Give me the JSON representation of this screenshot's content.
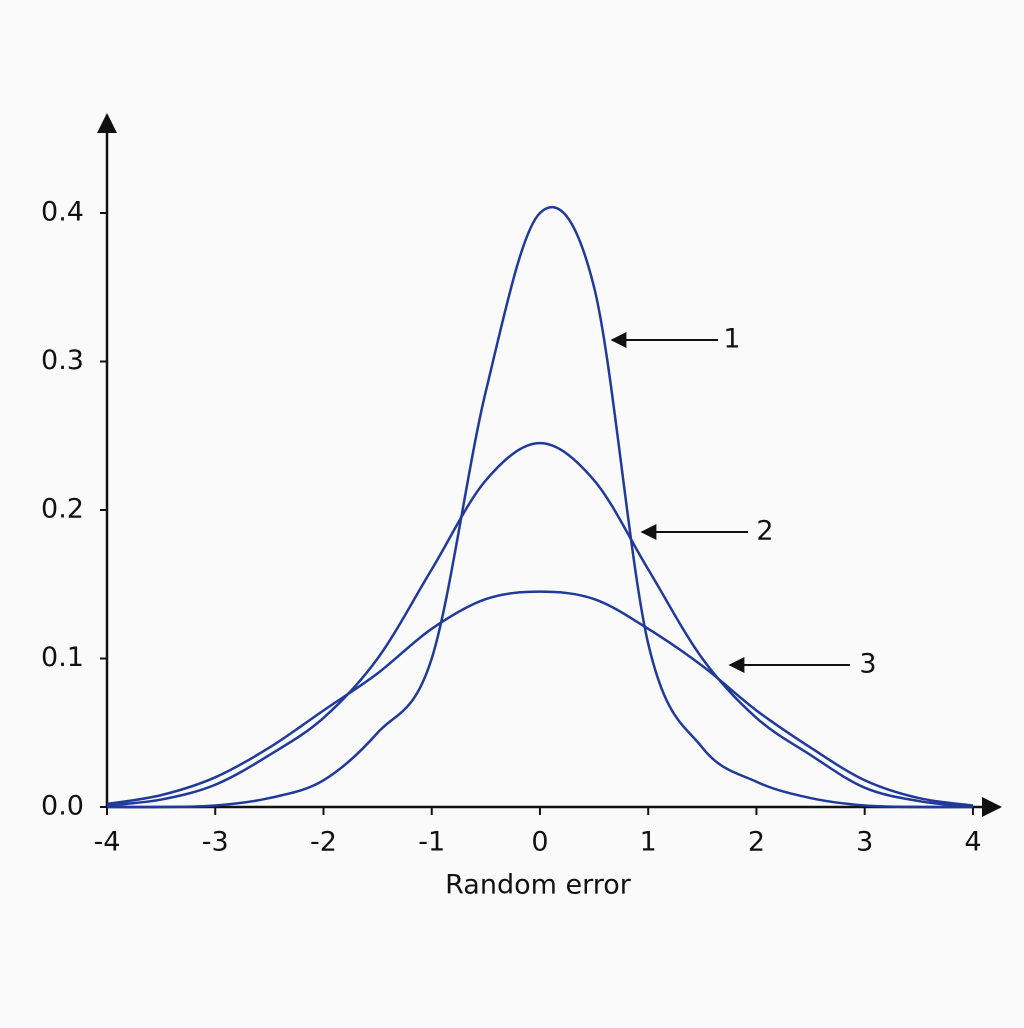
{
  "chart_data": {
    "type": "line",
    "x_label": "Random error",
    "x": [
      -4,
      -3.5,
      -3,
      -2.5,
      -2,
      -1.5,
      -1,
      -0.5,
      0,
      0.5,
      1,
      1.5,
      2,
      2.5,
      3,
      3.5,
      4
    ],
    "series": [
      {
        "name": "1",
        "color": "#1f3a9a",
        "values": [
          0,
          0,
          0.001,
          0.006,
          0.018,
          0.05,
          0.1,
          0.28,
          0.4,
          0.35,
          0.11,
          0.04,
          0.017,
          0.006,
          0.001,
          0,
          0
        ]
      },
      {
        "name": "2",
        "color": "#1f3a9a",
        "values": [
          0.001,
          0.005,
          0.015,
          0.035,
          0.06,
          0.1,
          0.16,
          0.22,
          0.245,
          0.22,
          0.16,
          0.1,
          0.06,
          0.035,
          0.013,
          0.004,
          0
        ]
      },
      {
        "name": "3",
        "color": "#1f3a9a",
        "values": [
          0.002,
          0.008,
          0.02,
          0.04,
          0.065,
          0.09,
          0.12,
          0.14,
          0.145,
          0.14,
          0.12,
          0.095,
          0.065,
          0.04,
          0.018,
          0.006,
          0.001
        ]
      }
    ],
    "xlim": [
      -4,
      4.25
    ],
    "ylim": [
      0,
      0.466
    ],
    "xticks": [
      -4,
      -3,
      -2,
      -1,
      0,
      1,
      2,
      3,
      4
    ],
    "yticks": [
      {
        "value": 0,
        "label": "0.0"
      },
      0.1,
      0.2,
      0.3,
      0.4
    ],
    "grid": false
  }
}
